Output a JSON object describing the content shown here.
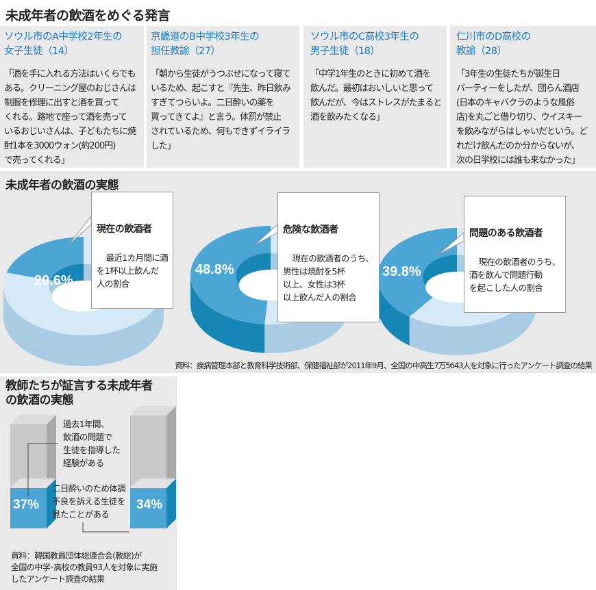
{
  "section1": {
    "title": "未成年者の飲酒をめぐる発言",
    "quotes": [
      {
        "speaker": "ソウル市のA中学校2年生の\n女子生徒（14）",
        "text": "「酒を手に入れる方法はいくらでも\nある。クリーニング屋のおじさんは\n制服を修理に出すと酒を買って\nくれる。路地で座って酒を売って\nいるおじいさんは、子どもたちに焼\n酎1本を3000ウォン(約200円)\nで売ってくれる」"
      },
      {
        "speaker": "京畿道のB中学校3年生の\n担任教諭（27）",
        "text": "「朝から生徒がうつぶせになって寝て\nいるため、起こすと『先生、昨日飲み\nすぎてつらいよ。二日酔いの薬を\n買ってきてよ』と言う。体罰が禁止\nされているため、何もできずイライラ\nした」"
      },
      {
        "speaker": "ソウル市のC高校3年生の\n男子生徒（18）",
        "text": "「中学1年生のときに初めて酒を\n飲んだ。最初はおいしいと思って\n飲んだが、今はストレスがたまると\n酒を飲みたくなる」"
      },
      {
        "speaker": "仁川市のD高校の\n教諭（28）",
        "text": "「3年生の生徒たちが誕生日\nパーティーをしたが、団らん酒店\n(日本のキャバクラのような風俗\n店)を丸ごと借り切り、ウイスキー\nを飲みながらはしゃいだという。ど\nれだけ飲んだのか分からないが、\n次の日学校には誰も来なかった」"
      }
    ]
  },
  "chart_data": [
    {
      "type": "pie",
      "title": "未成年者の飲酒の実態",
      "series": [
        {
          "name": "現在の飲酒者",
          "description": "最近1カ月間に酒\nを1杯以上飲んだ\n人の割合",
          "value": 20.6,
          "label": "20.6%"
        },
        {
          "name": "危険な飲酒者",
          "description": "現在の飲酒者のうち、\n男性は焼酎を5杯\n以上、女性は3杯\n以上飲んだ人の割合",
          "value": 48.8,
          "label": "48.8%"
        },
        {
          "name": "問題のある飲酒者",
          "description": "現在の飲酒者のうち、\n酒を飲んで問題行動\nを起こした人の割合",
          "value": 39.8,
          "label": "39.8%"
        }
      ],
      "source": "資料：疾病管理本部と教育科学技術部、保健福祉部が2011年9月、全国の中高生7万5643人を対象に行ったアンケート調査の結果"
    },
    {
      "type": "bar",
      "title": "教師たちが証言する未成年者\nの飲酒の実態",
      "categories": [
        "過去1年間、\n飲酒の問題で\n生徒を指導した\n経験がある",
        "二日酔いのため体調\n不良を訴える生徒を\n見たことがある"
      ],
      "values": [
        37,
        34
      ],
      "labels": [
        "37%",
        "34%"
      ],
      "ylim": [
        0,
        100
      ],
      "source": "資料：韓国教員団体総連合会(教総)が\n全国の中学･高校の教員93人を対象に実施\nしたアンケート調査の結果"
    }
  ],
  "colors": {
    "accent_text": "#1a7cc8",
    "slice_top": "#4ba5d5",
    "slice_side": "#1686b4",
    "rest_top": "#d6e9f7",
    "rest_side": "#a9cbe3",
    "panel_bg": "#e9e9e9",
    "bar_gray": "#c4c4c4",
    "bar_blue": "#4ba5d5"
  }
}
